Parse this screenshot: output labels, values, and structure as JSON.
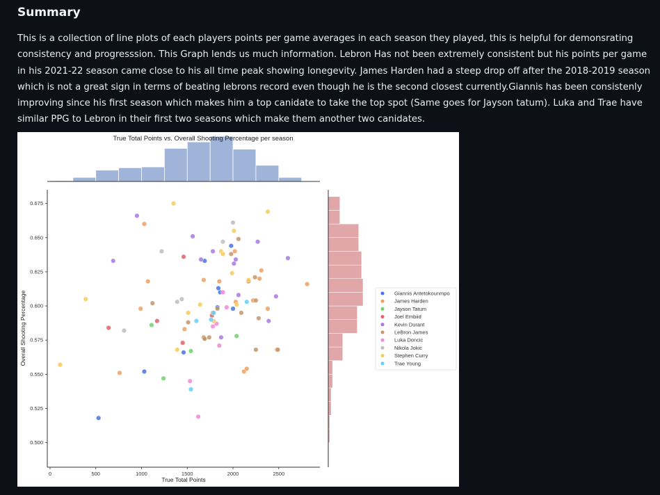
{
  "page": {
    "heading": "Summary",
    "paragraph": "This is a collection of line plots of each players points per game averages in each season they played, this is helpful for demonsrating consistency and progresssion. This Graph lends us much information. Lebron Has not been extremely consistent but his points per game in his 2021-22 season came close to his all time peak showing lonegevity. James Harden had a steep drop off after the 2018-2019 season which is not a great sign in terms of beating lebrons record even though he is the second closest currently.Giannis has been consistenly improving since his first season which makes him a top canidate to take the top spot (Same goes for Jayson tatum). Luka and Trae have similar PPG to Lebron in their first two seasons which make them another two canidates."
  },
  "chart_data": {
    "type": "scatter",
    "title": "True Total Points vs. Overall Shooting Percentage per season",
    "xlabel": "True Total Points",
    "ylabel": "Overall Shooting Percentage",
    "xlim": [
      -30,
      2950
    ],
    "ylim": [
      0.482,
      0.685
    ],
    "xticks": [
      0,
      500,
      1000,
      1500,
      2000,
      2500
    ],
    "yticks": [
      0.5,
      0.525,
      0.55,
      0.575,
      0.6,
      0.625,
      0.65,
      0.675
    ],
    "grid": false,
    "legend_position": "right",
    "marginal_x_histogram": {
      "bin_edges": [
        0,
        250,
        500,
        750,
        1000,
        1250,
        1500,
        1750,
        2000,
        2250,
        2500
      ],
      "counts": [
        1,
        5,
        14,
        17,
        18,
        41,
        49,
        56,
        40,
        20,
        5
      ],
      "color": "#a0b3d9"
    },
    "marginal_y_histogram": {
      "bin_edges": [
        0.5,
        0.51,
        0.52,
        0.53,
        0.54,
        0.55,
        0.56,
        0.57,
        0.58,
        0.59,
        0.6,
        0.61,
        0.62,
        0.63,
        0.64,
        0.65,
        0.66,
        0.67,
        0.68
      ],
      "counts": [
        1,
        1,
        2,
        2,
        3,
        3,
        10,
        10,
        20,
        20,
        24,
        24,
        23,
        23,
        21,
        21,
        8,
        8
      ],
      "color": "#e0a6a8"
    },
    "series": [
      {
        "name": "Giannis Antetokounmpo",
        "color": "#4c72e0",
        "points": [
          [
            530,
            0.518
          ],
          [
            1030,
            0.552
          ],
          [
            1460,
            0.566
          ],
          [
            1690,
            0.633
          ],
          [
            1860,
            0.61
          ],
          [
            1840,
            0.613
          ],
          [
            1830,
            0.599
          ],
          [
            1980,
            0.644
          ],
          [
            2000,
            0.598
          ]
        ]
      },
      {
        "name": "James Harden",
        "color": "#f0a060",
        "points": [
          [
            760,
            0.551
          ],
          [
            990,
            0.598
          ],
          [
            1030,
            0.66
          ],
          [
            1070,
            0.618
          ],
          [
            1470,
            0.583
          ],
          [
            1680,
            0.619
          ],
          [
            1850,
            0.618
          ],
          [
            2020,
            0.64
          ],
          [
            2030,
            0.603
          ],
          [
            2120,
            0.552
          ],
          [
            2150,
            0.554
          ],
          [
            2220,
            0.604
          ],
          [
            2290,
            0.62
          ],
          [
            2310,
            0.626
          ],
          [
            2380,
            0.598
          ],
          [
            2480,
            0.568
          ],
          [
            2810,
            0.616
          ]
        ]
      },
      {
        "name": "Jayson Tatum",
        "color": "#6dd36d",
        "points": [
          [
            1110,
            0.586
          ],
          [
            1240,
            0.547
          ],
          [
            1540,
            0.567
          ],
          [
            1690,
            0.576
          ],
          [
            2040,
            0.578
          ]
        ]
      },
      {
        "name": "Joel Embiid",
        "color": "#e0626b",
        "points": [
          [
            640,
            0.584
          ],
          [
            1170,
            0.589
          ],
          [
            1450,
            0.573
          ],
          [
            1460,
            0.636
          ],
          [
            1770,
            0.593
          ]
        ]
      },
      {
        "name": "Kevin Durant",
        "color": "#a878e3",
        "points": [
          [
            690,
            0.633
          ],
          [
            950,
            0.666
          ],
          [
            1560,
            0.651
          ],
          [
            1650,
            0.634
          ],
          [
            1780,
            0.64
          ],
          [
            1870,
            0.577
          ],
          [
            2010,
            0.631
          ],
          [
            2030,
            0.634
          ],
          [
            2060,
            0.608
          ],
          [
            2270,
            0.647
          ],
          [
            2390,
            0.589
          ],
          [
            2470,
            0.607
          ],
          [
            2600,
            0.635
          ]
        ]
      },
      {
        "name": "LeBron James",
        "color": "#c4956a",
        "points": [
          [
            1120,
            0.602
          ],
          [
            1510,
            0.588
          ],
          [
            1680,
            0.577
          ],
          [
            1690,
            0.576
          ],
          [
            1740,
            0.577
          ],
          [
            1780,
            0.595
          ],
          [
            1830,
            0.598
          ],
          [
            1980,
            0.638
          ],
          [
            2060,
            0.649
          ],
          [
            2090,
            0.595
          ],
          [
            2170,
            0.618
          ],
          [
            2250,
            0.568
          ],
          [
            2280,
            0.591
          ],
          [
            2250,
            0.604
          ],
          [
            2240,
            0.621
          ],
          [
            2490,
            0.568
          ]
        ]
      },
      {
        "name": "Luka Doncic",
        "color": "#ee8ad8",
        "points": [
          [
            1530,
            0.545
          ],
          [
            1620,
            0.519
          ],
          [
            1780,
            0.585
          ],
          [
            1820,
            0.587
          ],
          [
            1850,
            0.571
          ],
          [
            1890,
            0.61
          ],
          [
            1930,
            0.599
          ]
        ]
      },
      {
        "name": "Nikola Jokic",
        "color": "#bdbdbd",
        "points": [
          [
            810,
            0.582
          ],
          [
            1220,
            0.64
          ],
          [
            1390,
            0.603
          ],
          [
            1440,
            0.605
          ],
          [
            1890,
            0.647
          ],
          [
            2000,
            0.661
          ]
        ]
      },
      {
        "name": "Stephen Curry",
        "color": "#f7cb5a",
        "points": [
          [
            110,
            0.557
          ],
          [
            390,
            0.605
          ],
          [
            1350,
            0.675
          ],
          [
            1390,
            0.568
          ],
          [
            1510,
            0.595
          ],
          [
            1640,
            0.601
          ],
          [
            1790,
            0.589
          ],
          [
            1870,
            0.64
          ],
          [
            1890,
            0.638
          ],
          [
            1990,
            0.624
          ],
          [
            2010,
            0.655
          ],
          [
            2040,
            0.601
          ],
          [
            2170,
            0.619
          ],
          [
            2380,
            0.669
          ]
        ]
      },
      {
        "name": "Trae Young",
        "color": "#63d1f5",
        "points": [
          [
            1540,
            0.539
          ],
          [
            1600,
            0.589
          ],
          [
            1760,
            0.59
          ],
          [
            1790,
            0.595
          ],
          [
            2150,
            0.603
          ]
        ]
      }
    ]
  }
}
